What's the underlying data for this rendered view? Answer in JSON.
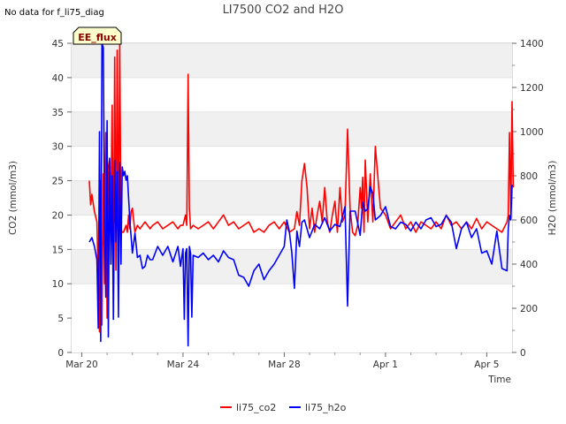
{
  "note": "No data for f_li75_diag",
  "badge": "EE_flux",
  "chart_data": {
    "type": "line",
    "title": "LI7500 CO2 and H2O",
    "xlabel": "Time",
    "ylabel_left": "CO2 (mmol/m3)",
    "ylabel_right": "H2O (mmol/m3)",
    "x_unit": "days since Mar 20",
    "xlim": [
      -0.4,
      17.0
    ],
    "ylim_left": [
      0,
      45
    ],
    "ylim_right": [
      0,
      1400
    ],
    "x_ticks": [
      {
        "x": 0,
        "label": "Mar 20"
      },
      {
        "x": 4,
        "label": "Mar 24"
      },
      {
        "x": 8,
        "label": "Mar 28"
      },
      {
        "x": 12,
        "label": "Apr 1"
      },
      {
        "x": 16,
        "label": "Apr 5"
      }
    ],
    "y_ticks_left": [
      0,
      5,
      10,
      15,
      20,
      25,
      30,
      35,
      40,
      45
    ],
    "y_ticks_right": [
      0,
      200,
      400,
      600,
      800,
      1000,
      1200,
      1400
    ],
    "series": [
      {
        "name": "li75_co2",
        "color": "#ff0000",
        "axis": "left",
        "x": [
          0.3,
          0.35,
          0.4,
          0.5,
          0.6,
          0.7,
          0.75,
          0.8,
          0.85,
          0.9,
          0.95,
          1.0,
          1.05,
          1.1,
          1.15,
          1.2,
          1.25,
          1.3,
          1.35,
          1.4,
          1.45,
          1.5,
          1.55,
          1.6,
          1.65,
          1.7,
          1.75,
          1.8,
          1.85,
          1.9,
          1.95,
          2.0,
          2.1,
          2.2,
          2.3,
          2.4,
          2.5,
          2.6,
          2.7,
          2.8,
          3.0,
          3.2,
          3.4,
          3.6,
          3.8,
          3.9,
          4.0,
          4.1,
          4.15,
          4.2,
          4.25,
          4.3,
          4.4,
          4.6,
          4.8,
          5.0,
          5.2,
          5.4,
          5.6,
          5.8,
          6.0,
          6.2,
          6.4,
          6.6,
          6.8,
          7.0,
          7.2,
          7.4,
          7.6,
          7.8,
          8.0,
          8.2,
          8.4,
          8.5,
          8.6,
          8.7,
          8.8,
          8.9,
          9.0,
          9.1,
          9.2,
          9.3,
          9.4,
          9.5,
          9.6,
          9.7,
          9.8,
          9.9,
          10.0,
          10.1,
          10.2,
          10.3,
          10.4,
          10.5,
          10.6,
          10.7,
          10.8,
          10.9,
          11.0,
          11.05,
          11.1,
          11.15,
          11.2,
          11.3,
          11.4,
          11.5,
          11.6,
          11.8,
          12.0,
          12.2,
          12.4,
          12.6,
          12.8,
          13.0,
          13.2,
          13.4,
          13.6,
          13.8,
          14.0,
          14.2,
          14.4,
          14.6,
          14.8,
          15.0,
          15.2,
          15.4,
          15.6,
          15.8,
          16.0,
          16.2,
          16.4,
          16.6,
          16.8,
          16.85,
          16.9,
          16.95,
          17.0,
          17.05
        ],
        "y": [
          25,
          21.5,
          23,
          20.5,
          19,
          3,
          25,
          4,
          26,
          10,
          32,
          5,
          27,
          28,
          21,
          36,
          11,
          43,
          12,
          44,
          15,
          45,
          18,
          17.5,
          17.5,
          18,
          18.5,
          17.5,
          20,
          18,
          20.5,
          21,
          17.5,
          18.5,
          18,
          18.5,
          19,
          18.5,
          18,
          18.5,
          19,
          18,
          18.5,
          19,
          18,
          18.5,
          18.5,
          20,
          18.5,
          40.5,
          21,
          18,
          18.5,
          18,
          18.5,
          19,
          18,
          19,
          20,
          18.5,
          19,
          18,
          18.5,
          19,
          17.5,
          18,
          17.5,
          18.5,
          19,
          18,
          19,
          17.5,
          18,
          20.5,
          18.5,
          25,
          27.5,
          24,
          18,
          21,
          17.5,
          20,
          22,
          19,
          24,
          19,
          17.5,
          20,
          22,
          17.5,
          24,
          19,
          20,
          32.5,
          21,
          17.5,
          17,
          18.5,
          24,
          21,
          25.5,
          17.5,
          28,
          19,
          26,
          19,
          30,
          21,
          20,
          18,
          19,
          20,
          18,
          19,
          17.5,
          19,
          18.5,
          18,
          19,
          18,
          20,
          18.5,
          19,
          18,
          19,
          18,
          19.5,
          18,
          19,
          18.5,
          18,
          17.5,
          19,
          20,
          32,
          20,
          36.5,
          24
        ]
      },
      {
        "name": "li75_h2o",
        "color": "#0000ff",
        "axis": "right",
        "x": [
          0.3,
          0.4,
          0.5,
          0.6,
          0.65,
          0.7,
          0.75,
          0.8,
          0.85,
          0.9,
          0.95,
          1.0,
          1.05,
          1.1,
          1.15,
          1.2,
          1.25,
          1.3,
          1.35,
          1.4,
          1.45,
          1.5,
          1.55,
          1.6,
          1.65,
          1.7,
          1.75,
          1.8,
          1.9,
          2.0,
          2.1,
          2.2,
          2.3,
          2.4,
          2.5,
          2.6,
          2.7,
          2.8,
          3.0,
          3.2,
          3.4,
          3.6,
          3.8,
          3.9,
          4.0,
          4.05,
          4.1,
          4.15,
          4.2,
          4.25,
          4.3,
          4.35,
          4.4,
          4.6,
          4.8,
          5.0,
          5.2,
          5.4,
          5.6,
          5.8,
          6.0,
          6.2,
          6.4,
          6.6,
          6.8,
          7.0,
          7.2,
          7.4,
          7.6,
          7.8,
          8.0,
          8.1,
          8.2,
          8.3,
          8.4,
          8.5,
          8.6,
          8.7,
          8.8,
          9.0,
          9.2,
          9.4,
          9.6,
          9.8,
          10.0,
          10.2,
          10.4,
          10.5,
          10.6,
          10.8,
          11.0,
          11.1,
          11.2,
          11.3,
          11.4,
          11.5,
          11.6,
          11.8,
          12.0,
          12.2,
          12.4,
          12.6,
          12.8,
          13.0,
          13.2,
          13.4,
          13.6,
          13.8,
          14.0,
          14.2,
          14.4,
          14.6,
          14.8,
          15.0,
          15.2,
          15.4,
          15.6,
          15.8,
          16.0,
          16.2,
          16.4,
          16.6,
          16.8,
          16.85,
          16.9,
          16.95,
          17.0
        ],
        "y": [
          500,
          520,
          480,
          420,
          110,
          1000,
          50,
          1400,
          1380,
          600,
          250,
          1050,
          70,
          880,
          400,
          800,
          150,
          870,
          500,
          820,
          160,
          860,
          400,
          840,
          800,
          820,
          780,
          800,
          600,
          450,
          540,
          430,
          440,
          380,
          390,
          440,
          420,
          420,
          480,
          440,
          480,
          410,
          480,
          390,
          470,
          150,
          450,
          470,
          30,
          480,
          450,
          160,
          440,
          430,
          450,
          420,
          440,
          410,
          460,
          430,
          420,
          350,
          340,
          300,
          370,
          400,
          330,
          370,
          400,
          440,
          480,
          600,
          550,
          450,
          290,
          550,
          480,
          590,
          600,
          520,
          580,
          560,
          610,
          550,
          580,
          570,
          660,
          210,
          640,
          640,
          530,
          680,
          640,
          650,
          750,
          720,
          600,
          620,
          660,
          570,
          560,
          590,
          580,
          550,
          590,
          560,
          600,
          610,
          570,
          580,
          620,
          590,
          470,
          560,
          590,
          520,
          560,
          450,
          460,
          400,
          550,
          380,
          370,
          560,
          620,
          600,
          760
        ]
      }
    ]
  }
}
